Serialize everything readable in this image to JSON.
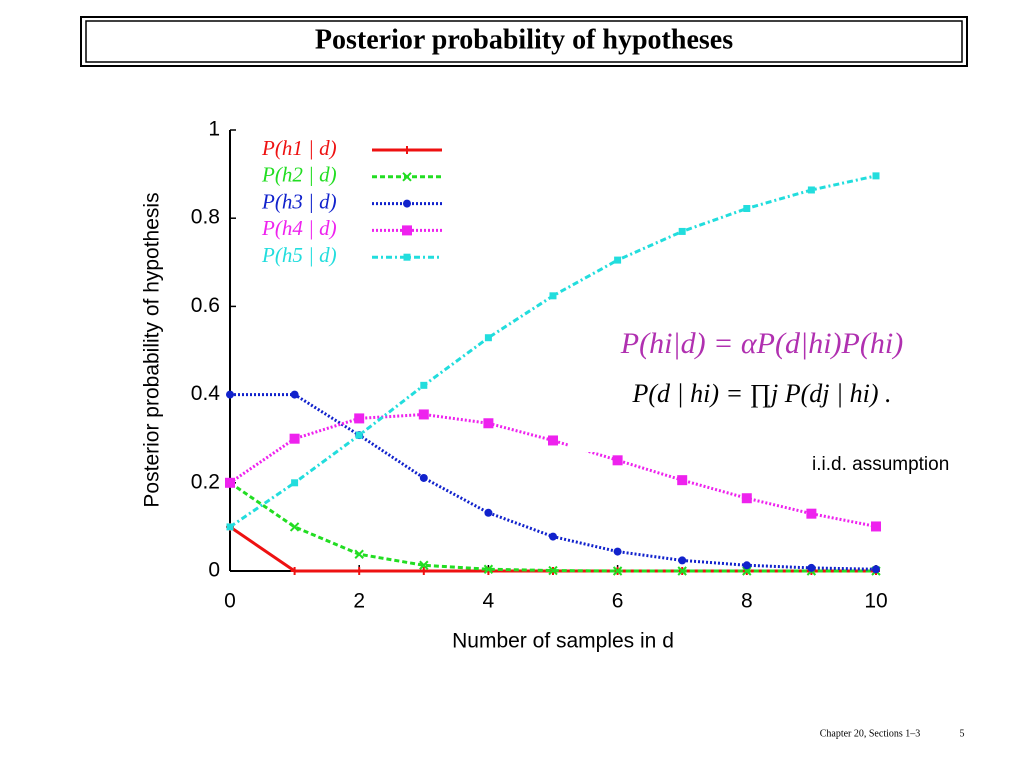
{
  "header": {
    "title": "Posterior probability of hypotheses"
  },
  "chart_data": {
    "type": "line",
    "x": [
      0,
      1,
      2,
      3,
      4,
      5,
      6,
      7,
      8,
      9,
      10
    ],
    "xlabel": "Number of samples in d",
    "ylabel": "Posterior probability of hypothesis",
    "xlim": [
      0,
      10
    ],
    "xticks": [
      0,
      2,
      4,
      6,
      8,
      10
    ],
    "ylim": [
      0,
      1
    ],
    "yticks": [
      0,
      0.2,
      0.4,
      0.6,
      0.8,
      1
    ],
    "legend": "upper left",
    "series": [
      {
        "name": "P(h1 | d)",
        "color": "#ee1111",
        "marker": "plus",
        "dash": "solid",
        "values": [
          0.1,
          0,
          0,
          0,
          0,
          0,
          0,
          0,
          0,
          0,
          0
        ]
      },
      {
        "name": "P(h2 | d)",
        "color": "#22dd22",
        "marker": "cross",
        "dash": "dashed",
        "values": [
          0.2,
          0.1,
          0.038,
          0.013,
          0.004,
          0.001,
          0,
          0,
          0,
          0,
          0
        ]
      },
      {
        "name": "P(h3 | d)",
        "color": "#1122cc",
        "marker": "circle",
        "dash": "dotted",
        "values": [
          0.4,
          0.4,
          0.308,
          0.211,
          0.132,
          0.078,
          0.044,
          0.024,
          0.013,
          0.007,
          0.004
        ]
      },
      {
        "name": "P(h4 | d)",
        "color": "#ee22ee",
        "marker": "square",
        "dash": "dotted",
        "values": [
          0.2,
          0.3,
          0.346,
          0.355,
          0.335,
          0.296,
          0.251,
          0.206,
          0.165,
          0.13,
          0.101
        ]
      },
      {
        "name": "P(h5 | d)",
        "color": "#22dddd",
        "marker": "square",
        "dash": "dashdot",
        "values": [
          0.1,
          0.2,
          0.308,
          0.421,
          0.529,
          0.624,
          0.705,
          0.77,
          0.822,
          0.864,
          0.896
        ]
      }
    ],
    "annotations": [
      "P(hi|d) = αP(d|hi)P(hi)",
      "P(d | hi) = ∏j P(dj | hi) .",
      "i.i.d. assumption"
    ]
  },
  "footer": {
    "section": "Chapter 20, Sections 1–3",
    "page": "5"
  }
}
